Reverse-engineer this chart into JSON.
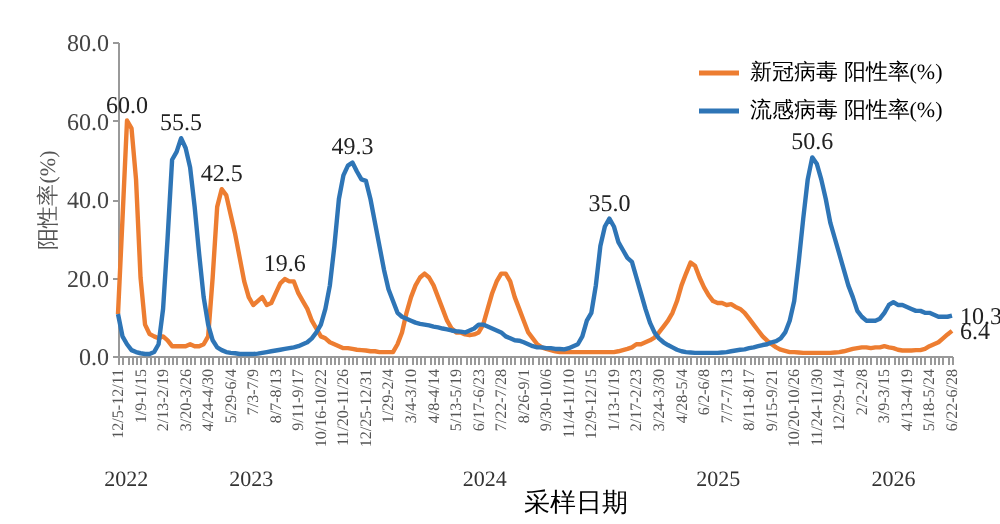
{
  "chart_data": {
    "type": "line",
    "xlabel": "采样日期",
    "ylabel": "阳性率(%)",
    "categories": [
      "12/5-12/11",
      null,
      null,
      null,
      null,
      "1/9-1/15",
      null,
      null,
      null,
      null,
      "2/13-2/19",
      null,
      null,
      null,
      null,
      "3/20-3/26",
      null,
      null,
      null,
      null,
      "4/24-4/30",
      null,
      null,
      null,
      null,
      "5/29-6/4",
      null,
      null,
      null,
      null,
      "7/3-7/9",
      null,
      null,
      null,
      null,
      "8/7-8/13",
      null,
      null,
      null,
      null,
      "9/11-9/17",
      null,
      null,
      null,
      null,
      "10/16-10/22",
      null,
      null,
      null,
      null,
      "11/20-11/26",
      null,
      null,
      null,
      null,
      "12/25-12/31",
      null,
      null,
      null,
      null,
      "1/29-2/4",
      null,
      null,
      null,
      null,
      "3/4-3/10",
      null,
      null,
      null,
      null,
      "4/8-4/14",
      null,
      null,
      null,
      null,
      "5/13-5/19",
      null,
      null,
      null,
      null,
      "6/17-6/23",
      null,
      null,
      null,
      null,
      "7/22-7/28",
      null,
      null,
      null,
      null,
      "8/26-9/1",
      null,
      null,
      null,
      null,
      "9/30-10/6",
      null,
      null,
      null,
      null,
      "11/4-11/10",
      null,
      null,
      null,
      null,
      "12/9-12/15",
      null,
      null,
      null,
      null,
      "1/13-1/19",
      null,
      null,
      null,
      null,
      "2/17-2/23",
      null,
      null,
      null,
      null,
      "3/24-3/30",
      null,
      null,
      null,
      null,
      "4/28-5/4",
      null,
      null,
      null,
      null,
      "6/2-6/8",
      null,
      null,
      null,
      null,
      "7/7-7/13",
      null,
      null,
      null,
      null,
      "8/11-8/17",
      null,
      null,
      null,
      null,
      "9/15-9/21",
      null,
      null,
      null,
      null,
      "10/20-10/26",
      null,
      null,
      null,
      null,
      "11/24-11/30",
      null,
      null,
      null,
      null,
      "12/29-1/4",
      null,
      null,
      null,
      null,
      "2/2-2/8",
      null,
      null,
      null,
      null,
      "3/9-3/15",
      null,
      null,
      null,
      null,
      "4/13-4/19",
      null,
      null,
      null,
      null,
      "5/18-5/24",
      null,
      null,
      null,
      null,
      "6/22-6/28"
    ],
    "series": [
      {
        "name": "新冠病毒 阳性率(%)",
        "color": "#ed7d31",
        "values": [
          10.7,
          35,
          60,
          58,
          45,
          20,
          8,
          5.6,
          5,
          4.5,
          5,
          4,
          2.5,
          2.5,
          2.5,
          2.5,
          3,
          2.5,
          2.5,
          3,
          5,
          20,
          38,
          42.5,
          41,
          36,
          31,
          25,
          19,
          15,
          13,
          14,
          15,
          13,
          13.5,
          16,
          18.5,
          19.6,
          19,
          19,
          16,
          14,
          12,
          9,
          7,
          5,
          4.5,
          3.5,
          3,
          2.5,
          2,
          2,
          1.8,
          1.6,
          1.5,
          1.4,
          1.2,
          1.2,
          1,
          1,
          1,
          1,
          3,
          6,
          11,
          15,
          18,
          20,
          21,
          20,
          18,
          15,
          12,
          9,
          7,
          6,
          6,
          5.5,
          5.3,
          5.5,
          6,
          8,
          12,
          16,
          19,
          21,
          21,
          19,
          15,
          12,
          9,
          6,
          4.5,
          3,
          2.2,
          1.8,
          1.5,
          1.2,
          1,
          1,
          1,
          1,
          1,
          1,
          1,
          1,
          1,
          1,
          1,
          1,
          1,
          1.2,
          1.5,
          1.8,
          2.2,
          3,
          3,
          3.5,
          4,
          4.7,
          6,
          7.5,
          9,
          11,
          14,
          18,
          21,
          23.8,
          23,
          20,
          17.5,
          15.5,
          14,
          13.5,
          13.5,
          13,
          13.2,
          12.5,
          12,
          11,
          9.5,
          8,
          6.5,
          5,
          3.9,
          3,
          2.2,
          1.6,
          1.3,
          1,
          1,
          0.9,
          0.8,
          0.8,
          0.8,
          0.8,
          0.8,
          0.8,
          0.8,
          0.9,
          1,
          1.2,
          1.5,
          1.8,
          2,
          2.2,
          2.2,
          2,
          2.2,
          2.2,
          2.5,
          2.2,
          2,
          1.6,
          1.4,
          1.4,
          1.4,
          1.5,
          1.5,
          1.8,
          2.5,
          3,
          3.5,
          4.5,
          5.5,
          6.4
        ],
        "value_labels": [
          null,
          null,
          "60.0",
          null,
          null,
          null,
          null,
          null,
          null,
          null,
          null,
          null,
          null,
          null,
          null,
          null,
          null,
          null,
          null,
          null,
          null,
          null,
          null,
          "42.5",
          null,
          null,
          null,
          null,
          null,
          null,
          null,
          null,
          null,
          null,
          null,
          null,
          null,
          "19.6",
          null,
          null,
          null,
          null,
          null,
          null,
          null,
          null,
          null,
          null,
          null,
          null,
          null,
          null,
          null,
          null,
          null,
          null,
          null,
          null,
          null,
          null,
          null,
          null,
          null,
          null,
          null,
          null,
          null,
          null,
          null,
          null,
          null,
          null,
          null,
          null,
          null,
          null,
          null,
          null,
          null,
          null,
          null,
          null,
          null,
          null,
          null,
          null,
          null,
          null,
          null,
          null,
          null,
          null,
          null,
          null,
          null,
          null,
          null,
          null,
          null,
          null,
          null,
          null,
          null,
          null,
          null,
          null,
          null,
          null,
          null,
          null,
          null,
          null,
          null,
          null,
          null,
          null,
          null,
          null,
          null,
          null,
          null,
          null,
          null,
          null,
          null,
          null,
          null,
          null,
          null,
          null,
          null,
          null,
          null,
          null,
          null,
          null,
          null,
          null,
          null,
          null,
          null,
          null,
          null,
          null,
          null,
          null,
          null,
          null,
          null,
          null,
          null,
          null,
          null,
          null,
          null,
          null,
          null,
          null,
          null,
          null,
          null,
          null,
          null,
          null,
          null,
          null,
          null,
          null,
          null,
          null,
          null,
          null,
          null,
          null,
          null,
          null,
          null,
          null,
          null,
          null,
          null,
          null,
          null,
          null,
          null,
          "6.4"
        ]
      },
      {
        "name": "流感病毒 阳性率(%)",
        "color": "#2e75b6",
        "values": [
          10.7,
          5,
          3,
          1.5,
          1,
          0.7,
          0.5,
          0.5,
          1,
          3,
          12,
          30,
          50,
          52,
          55.5,
          53,
          48,
          38,
          26,
          15,
          8,
          4,
          2.2,
          1.5,
          1,
          0.8,
          0.7,
          0.5,
          0.5,
          0.5,
          0.5,
          0.6,
          0.8,
          1,
          1.2,
          1.4,
          1.6,
          1.8,
          2,
          2.2,
          2.5,
          3,
          3.5,
          4.5,
          6,
          8,
          12,
          18,
          28,
          40,
          46,
          48.5,
          49.3,
          47,
          45,
          44.6,
          40,
          34,
          28,
          22,
          17,
          14,
          11,
          10,
          9.5,
          9,
          8.5,
          8.2,
          8,
          7.8,
          7.5,
          7.3,
          7,
          6.8,
          6.5,
          6.3,
          6.2,
          6,
          6.5,
          7,
          8,
          8,
          7.5,
          7,
          6.5,
          6,
          5,
          4.5,
          4,
          3.9,
          3.5,
          3,
          2.5,
          2.2,
          2.2,
          2,
          2,
          1.8,
          1.8,
          1.7,
          2,
          2.5,
          3,
          5,
          9,
          11,
          18,
          28,
          33,
          35,
          33,
          29,
          27,
          25,
          24,
          20,
          16,
          12,
          8.5,
          6,
          4.5,
          3.5,
          2.8,
          2.2,
          1.6,
          1.2,
          1,
          0.9,
          0.8,
          0.8,
          0.8,
          0.8,
          0.8,
          0.8,
          0.9,
          1,
          1.2,
          1.4,
          1.6,
          1.7,
          2,
          2.2,
          2.5,
          2.8,
          3,
          3.5,
          3.8,
          4.5,
          6,
          9,
          14,
          24,
          35,
          45,
          50.6,
          49,
          45,
          40,
          34,
          30,
          26,
          22,
          18,
          15,
          11.5,
          10,
          9,
          9,
          9,
          9.5,
          11,
          13,
          13.7,
          13,
          13,
          12.5,
          12,
          11.5,
          11.5,
          11,
          11,
          10.5,
          10,
          10,
          10,
          10.3
        ],
        "value_labels": [
          null,
          null,
          null,
          null,
          null,
          null,
          null,
          null,
          null,
          null,
          null,
          null,
          null,
          null,
          "55.5",
          null,
          null,
          null,
          null,
          null,
          null,
          null,
          null,
          null,
          null,
          null,
          null,
          null,
          null,
          null,
          null,
          null,
          null,
          null,
          null,
          null,
          null,
          null,
          null,
          null,
          null,
          null,
          null,
          null,
          null,
          null,
          null,
          null,
          null,
          null,
          null,
          null,
          "49.3",
          null,
          null,
          null,
          null,
          null,
          null,
          null,
          null,
          null,
          null,
          null,
          null,
          null,
          null,
          null,
          null,
          null,
          null,
          null,
          null,
          null,
          null,
          null,
          null,
          null,
          null,
          null,
          null,
          null,
          null,
          null,
          null,
          null,
          null,
          null,
          null,
          null,
          null,
          null,
          null,
          null,
          null,
          null,
          null,
          null,
          null,
          null,
          null,
          null,
          null,
          null,
          null,
          null,
          null,
          null,
          null,
          "35.0",
          null,
          null,
          null,
          null,
          null,
          null,
          null,
          null,
          null,
          null,
          null,
          null,
          null,
          null,
          null,
          null,
          null,
          null,
          null,
          null,
          null,
          null,
          null,
          null,
          null,
          null,
          null,
          null,
          null,
          null,
          null,
          null,
          null,
          null,
          null,
          null,
          null,
          null,
          null,
          null,
          null,
          null,
          null,
          null,
          "50.6",
          null,
          null,
          null,
          null,
          null,
          null,
          null,
          null,
          null,
          null,
          null,
          null,
          null,
          null,
          null,
          null,
          null,
          null,
          null,
          null,
          null,
          null,
          null,
          null,
          null,
          null,
          null,
          null,
          null,
          null,
          "10.3"
        ]
      }
    ],
    "ylim": [
      0,
      80
    ],
    "yticks": [
      {
        "value": 0,
        "label": "0.0"
      },
      {
        "value": 20,
        "label": "20.0"
      },
      {
        "value": 40,
        "label": "40.0"
      },
      {
        "value": 60,
        "label": "60.0"
      },
      {
        "value": 80,
        "label": "80.0"
      }
    ],
    "annotations": [
      "2022",
      "2023",
      "2024",
      "2025",
      "2026"
    ],
    "grid": false,
    "legend": "top right",
    "marker": "none",
    "line_style": "solid"
  }
}
